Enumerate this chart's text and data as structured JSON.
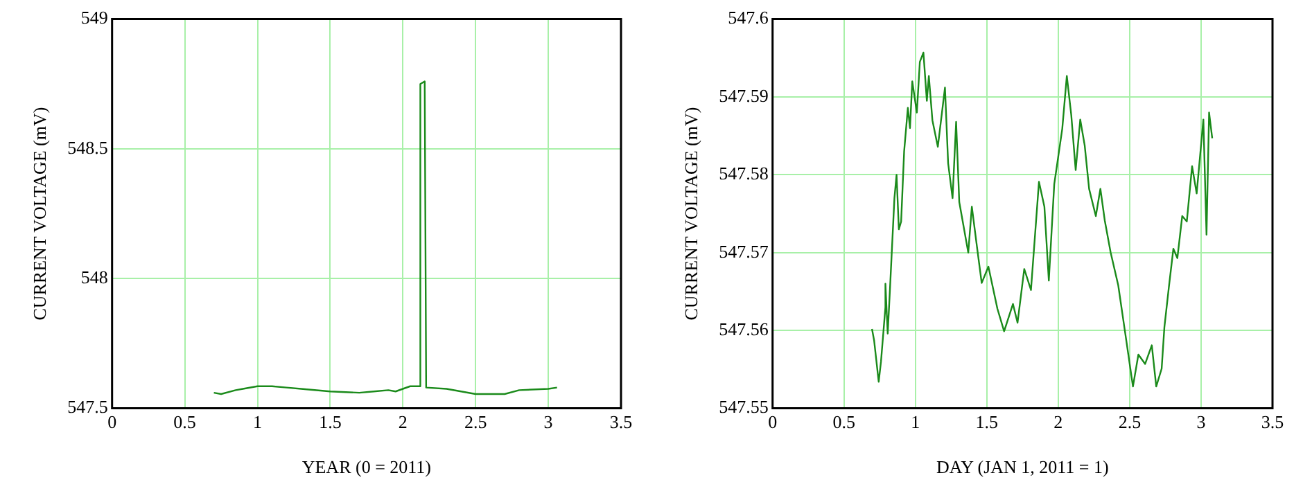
{
  "chart_data": [
    {
      "type": "line",
      "xlabel": "YEAR (0 = 2011)",
      "ylabel": "CURRENT VOLTAGE (mV)",
      "xlim": [
        0,
        3.5
      ],
      "xticks": [
        0,
        0.5,
        1,
        1.5,
        2,
        2.5,
        3,
        3.5
      ],
      "ylim": [
        547.5,
        549
      ],
      "yticks": [
        547.5,
        548,
        548.5,
        549
      ],
      "grid": true,
      "marker": "none",
      "line_style": "solid",
      "series": [
        {
          "color": "#1a8a1a",
          "x": [
            0.7,
            0.75,
            0.85,
            0.9,
            1.0,
            1.1,
            1.2,
            1.3,
            1.5,
            1.7,
            1.8,
            1.9,
            1.95,
            2.05,
            2.12,
            2.12,
            2.15,
            2.16,
            2.3,
            2.5,
            2.7,
            2.8,
            3.0,
            3.06
          ],
          "values": [
            547.56,
            547.555,
            547.57,
            547.575,
            547.585,
            547.585,
            547.58,
            547.575,
            547.565,
            547.56,
            547.565,
            547.57,
            547.565,
            547.585,
            547.585,
            548.75,
            548.76,
            547.58,
            547.575,
            547.555,
            547.555,
            547.57,
            547.575,
            547.58
          ]
        }
      ]
    },
    {
      "type": "line",
      "xlabel": "DAY (JAN 1, 2011 = 1)",
      "ylabel": "CURRENT VOLTAGE (mV)",
      "xlim": [
        0,
        3.5
      ],
      "xticks": [
        0,
        0.5,
        1,
        1.5,
        2,
        2.5,
        3,
        3.5
      ],
      "ylim": [
        547.55,
        547.6
      ],
      "yticks": [
        547.55,
        547.56,
        547.57,
        547.58,
        547.59,
        547.6
      ],
      "grid": true,
      "marker": "none",
      "line_style": "solid",
      "series": [
        {
          "color": "#1a8a1a",
          "x": [
            0.696,
            0.711,
            0.743,
            0.759,
            0.79,
            0.79,
            0.806,
            0.821,
            0.853,
            0.868,
            0.884,
            0.9,
            0.921,
            0.947,
            0.962,
            0.978,
            1.01,
            1.031,
            1.056,
            1.08,
            1.094,
            1.119,
            1.157,
            1.207,
            1.229,
            1.26,
            1.285,
            1.307,
            1.37,
            1.395,
            1.432,
            1.464,
            1.511,
            1.574,
            1.621,
            1.683,
            1.715,
            1.762,
            1.809,
            1.865,
            1.903,
            1.934,
            1.972,
            2.028,
            2.06,
            2.091,
            2.122,
            2.154,
            2.185,
            2.216,
            2.263,
            2.295,
            2.326,
            2.367,
            2.42,
            2.467,
            2.523,
            2.561,
            2.608,
            2.655,
            2.686,
            2.724,
            2.743,
            2.774,
            2.806,
            2.834,
            2.868,
            2.9,
            2.937,
            2.969,
            3.016,
            3.038,
            3.056,
            3.078
          ],
          "values": [
            547.5602,
            547.5587,
            547.5534,
            547.556,
            547.563,
            547.566,
            547.5596,
            547.565,
            547.577,
            547.58,
            547.573,
            547.574,
            547.583,
            547.5886,
            547.586,
            547.592,
            547.588,
            547.5945,
            547.5957,
            547.5895,
            547.5927,
            547.587,
            547.5836,
            547.5912,
            547.5815,
            547.577,
            547.5868,
            547.5765,
            547.57,
            547.5759,
            547.5706,
            547.5661,
            547.5682,
            547.5628,
            547.5599,
            547.5634,
            547.561,
            547.5679,
            547.5652,
            547.5791,
            547.5759,
            547.5664,
            547.5788,
            547.5859,
            547.5927,
            547.5877,
            547.5806,
            547.5871,
            547.5838,
            547.5782,
            547.5747,
            547.5782,
            547.5741,
            547.57,
            547.5658,
            547.5599,
            547.5528,
            547.5569,
            547.5557,
            547.5581,
            547.5528,
            547.5551,
            547.5604,
            547.5655,
            547.5705,
            547.5693,
            547.5747,
            547.574,
            547.5811,
            547.5776,
            547.5871,
            547.5723,
            547.588,
            547.5847
          ]
        }
      ]
    }
  ]
}
